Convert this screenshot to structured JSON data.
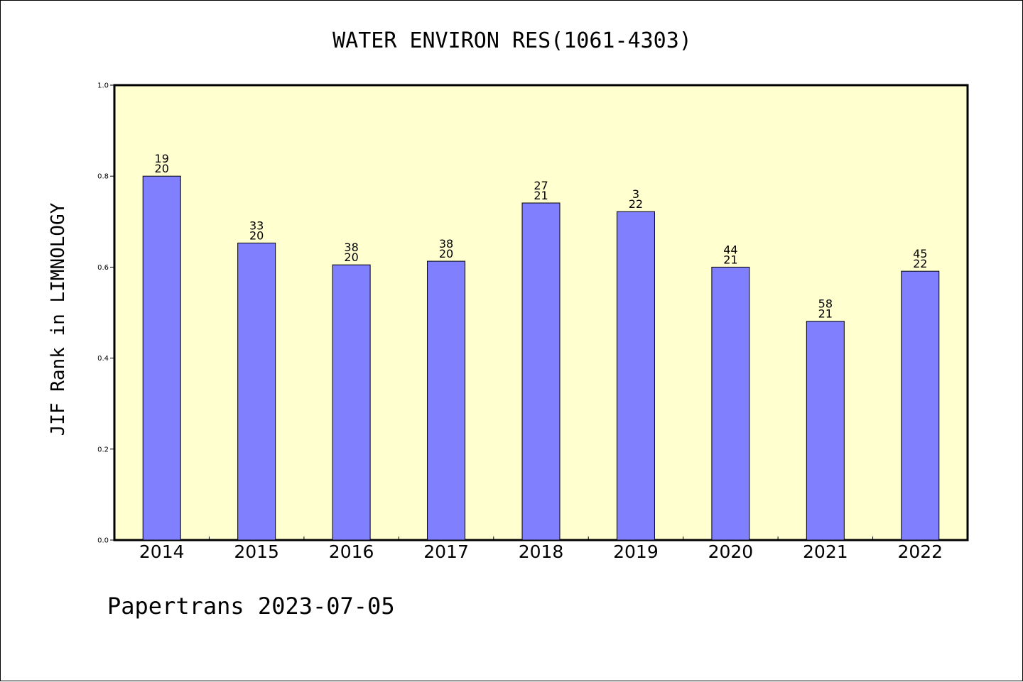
{
  "chart_data": {
    "type": "bar",
    "title": "WATER ENVIRON RES(1061-4303)",
    "ylabel": "JIF Rank in LIMNOLOGY",
    "footer": "Papertrans 2023-07-05",
    "ylim": [
      0,
      1.0
    ],
    "yticks": [
      "0.0",
      "0.2",
      "0.4",
      "0.6",
      "0.8",
      "1.0"
    ],
    "grid": false,
    "categories": [
      "2014",
      "2015",
      "2016",
      "2017",
      "2018",
      "2019",
      "2020",
      "2021",
      "2022"
    ],
    "values": [
      0.8,
      0.653,
      0.605,
      0.613,
      0.741,
      0.722,
      0.6,
      0.481,
      0.591
    ],
    "label_top": [
      "19",
      "33",
      "38",
      "38",
      "27",
      "3",
      "44",
      "58",
      "45"
    ],
    "label_bottom": [
      "20",
      "20",
      "20",
      "20",
      "21",
      "22",
      "21",
      "21",
      "22"
    ],
    "colors": {
      "plot_background": "#ffffd0",
      "bar_fill": "#8080ff",
      "bar_stroke": "#000000",
      "axis": "#000000"
    }
  }
}
